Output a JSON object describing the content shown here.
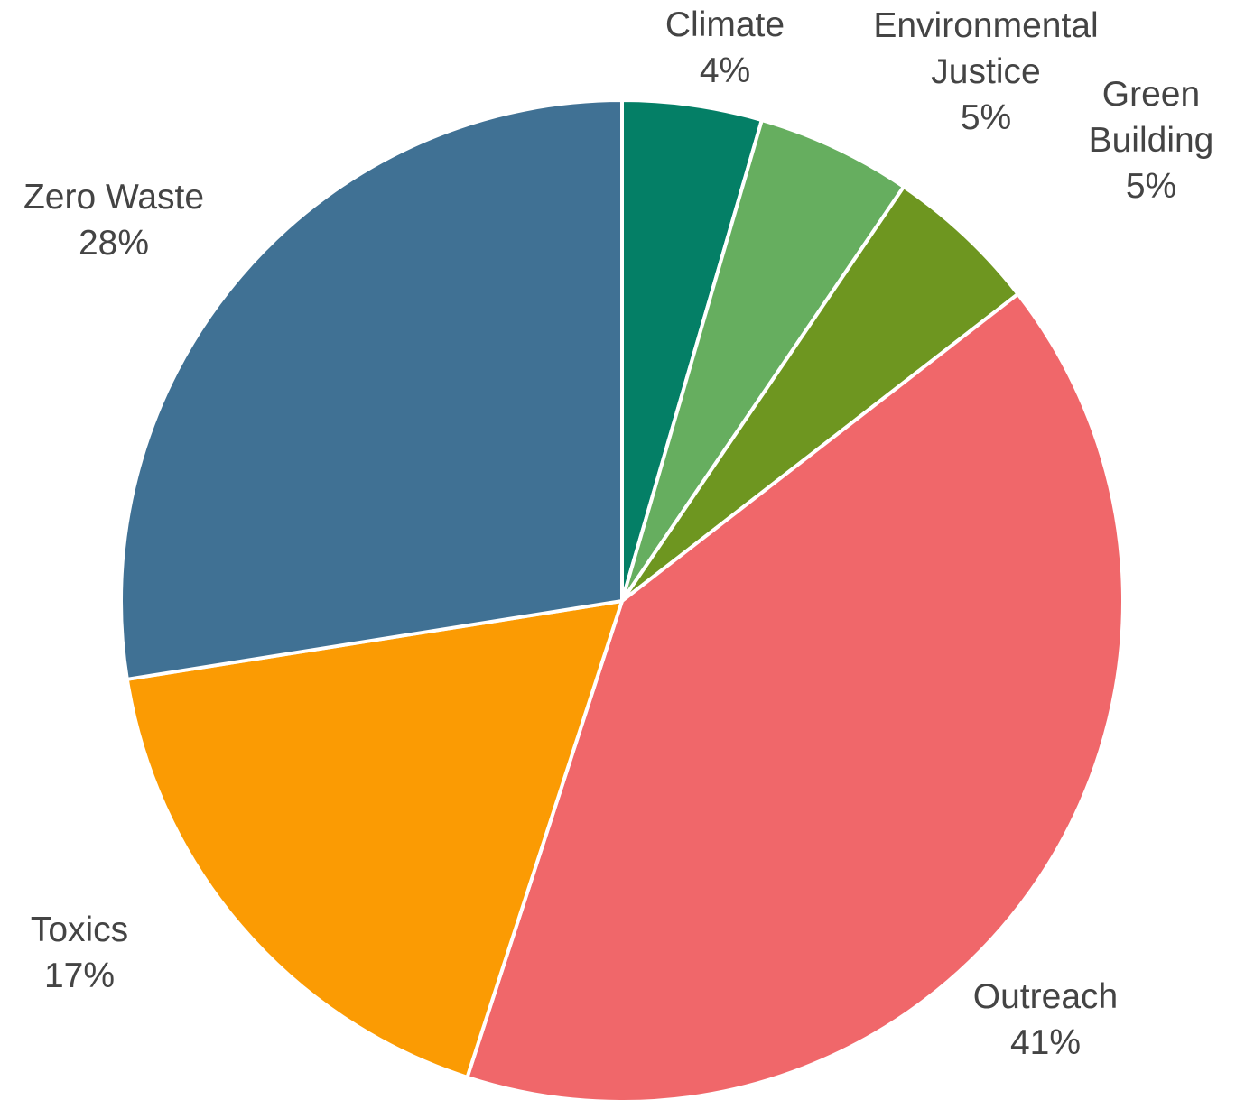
{
  "chart_data": {
    "type": "pie",
    "title": "",
    "start_angle_deg": 0,
    "direction": "clockwise",
    "slices": [
      {
        "label": "Climate",
        "value_label": "4%",
        "value": 4.5,
        "color": "#047f66"
      },
      {
        "label": "Environmental Justice",
        "value_label": "5%",
        "value": 5,
        "color": "#66ae5f"
      },
      {
        "label": "Green Building",
        "value_label": "5%",
        "value": 5,
        "color": "#6e9620"
      },
      {
        "label": "Outreach",
        "value_label": "41%",
        "value": 40.5,
        "color": "#f0676a"
      },
      {
        "label": "Toxics",
        "value_label": "17%",
        "value": 17.5,
        "color": "#fb9b03"
      },
      {
        "label": "Zero Waste",
        "value_label": "28%",
        "value": 27.5,
        "color": "#407194"
      }
    ]
  }
}
